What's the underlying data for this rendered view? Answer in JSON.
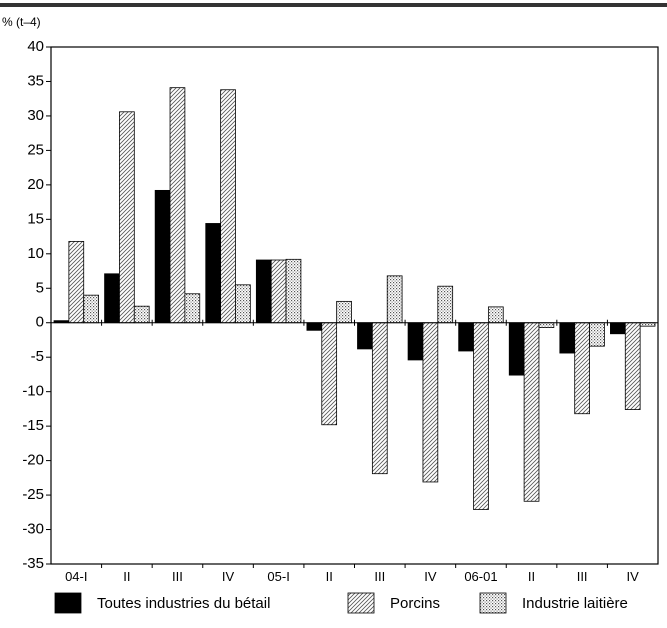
{
  "chart_data": {
    "type": "bar",
    "title": "",
    "unit_label": "% (t–4)",
    "ylim": [
      -35,
      40
    ],
    "yticks": [
      40,
      35,
      30,
      25,
      20,
      15,
      10,
      5,
      0,
      -5,
      -10,
      -15,
      -20,
      -25,
      -30,
      -35
    ],
    "grid": false,
    "legend_position": "bottom",
    "categories": [
      "04-I",
      "II",
      "III",
      "IV",
      "05-I",
      "II",
      "III",
      "IV",
      "06-01",
      "II",
      "III",
      "IV"
    ],
    "series": [
      {
        "name": "Toutes industries du bétail",
        "color": "#000000",
        "pattern": "solid",
        "values": [
          0.3,
          7.1,
          19.2,
          14.4,
          9.1,
          -1.1,
          -3.8,
          -5.4,
          -4.1,
          -7.6,
          -4.4,
          -1.6
        ]
      },
      {
        "name": "Porcins",
        "color": "#b0b0b0",
        "pattern": "diagonal-hatch",
        "values": [
          11.8,
          30.6,
          34.1,
          33.8,
          9.1,
          -14.8,
          -21.9,
          -23.1,
          -27.1,
          -25.9,
          -13.2,
          -12.6
        ]
      },
      {
        "name": "Industrie laitière",
        "color": "#c8c8c8",
        "pattern": "dots",
        "values": [
          4.0,
          2.4,
          4.2,
          5.5,
          9.2,
          3.1,
          6.8,
          5.3,
          2.3,
          -0.7,
          -3.4,
          -0.5
        ]
      }
    ]
  }
}
